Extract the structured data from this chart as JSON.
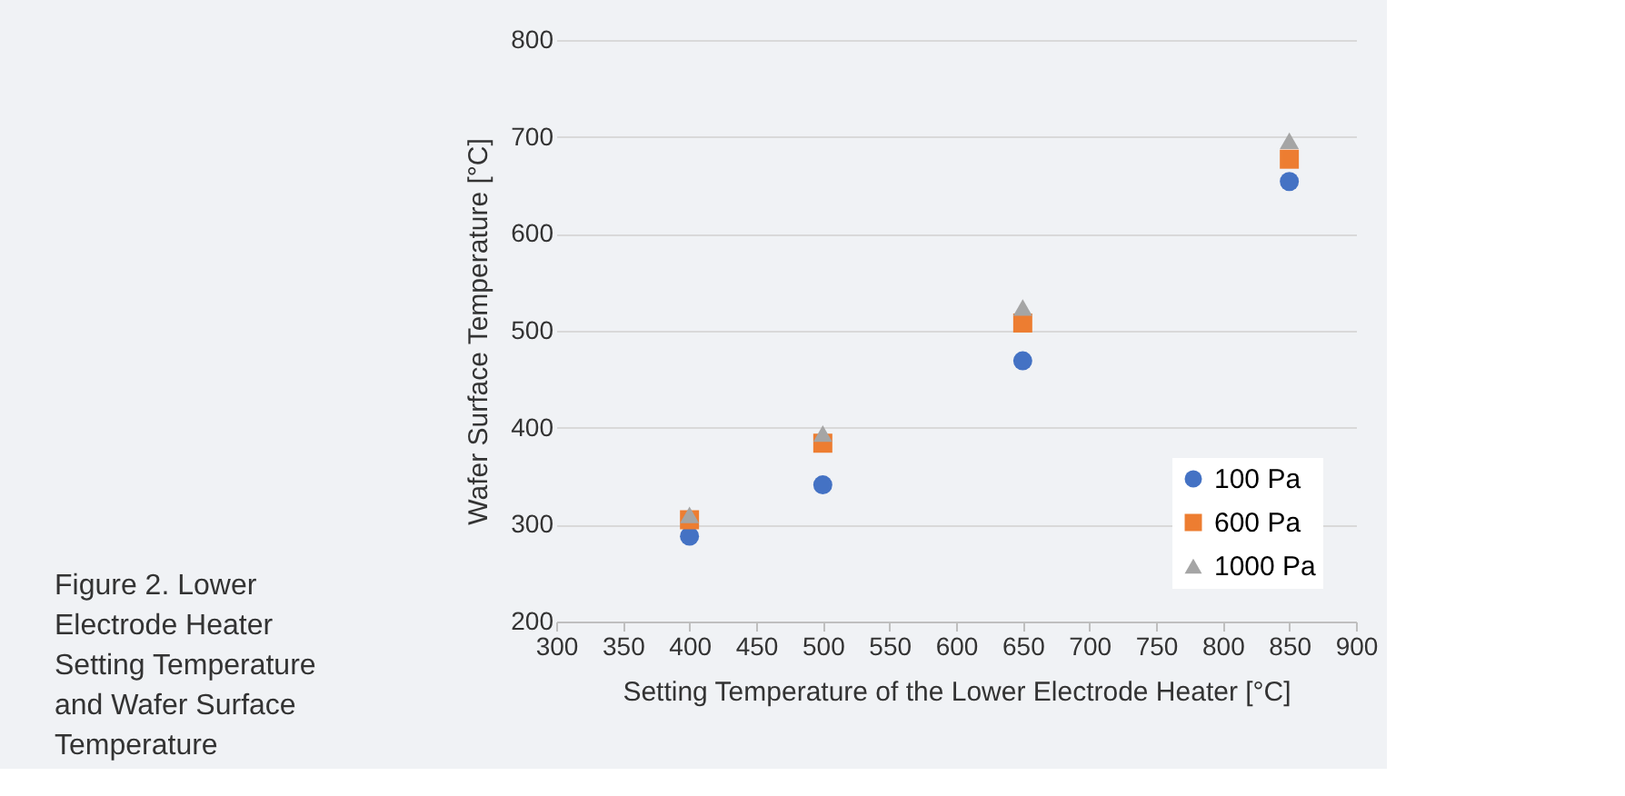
{
  "chart_data": {
    "type": "scatter",
    "title": "Figure 2. Lower Electrode Heater Setting Temperature and Wafer Surface Temperature",
    "xlabel": "Setting Temperature of the Lower Electrode Heater [°C]",
    "ylabel": "Wafer Surface Temperature [°C]",
    "x": [
      400,
      500,
      650,
      850
    ],
    "series": [
      {
        "name": "100 Pa",
        "color": "#4472c4",
        "marker": "circle",
        "values": [
          288,
          341,
          469,
          654
        ]
      },
      {
        "name": "600 Pa",
        "color": "#ed7d31",
        "marker": "square",
        "values": [
          305,
          384,
          508,
          677
        ]
      },
      {
        "name": "1000 Pa",
        "color": "#a5a5a5",
        "marker": "triangle",
        "values": [
          310,
          394,
          524,
          696
        ]
      }
    ],
    "xlim": [
      300,
      900
    ],
    "xticks": [
      300,
      350,
      400,
      450,
      500,
      550,
      600,
      650,
      700,
      750,
      800,
      850,
      900
    ],
    "ylim": [
      200,
      800
    ],
    "yticks": [
      200,
      300,
      400,
      500,
      600,
      700,
      800
    ],
    "grid": "y",
    "legend": "bottom right"
  }
}
